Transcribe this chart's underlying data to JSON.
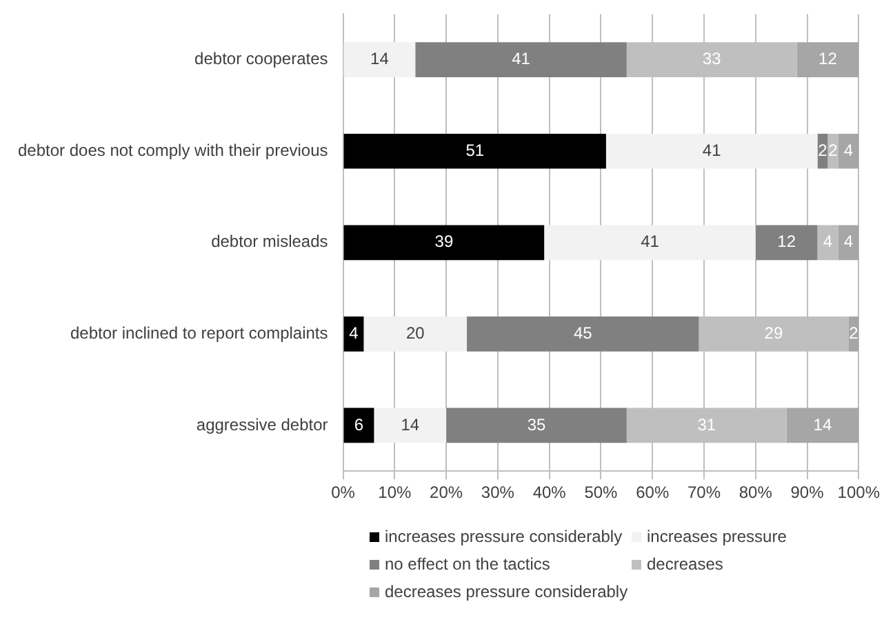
{
  "chart_data": {
    "type": "bar",
    "orientation": "horizontal",
    "stacked": true,
    "categories": [
      "debtor cooperates",
      "debtor does not comply with their previous",
      "debtor misleads",
      "debtor inclined to report complaints",
      "aggressive debtor"
    ],
    "series": [
      {
        "name": "increases pressure considerably",
        "color": "#000000",
        "values": [
          0,
          51,
          39,
          4,
          6
        ],
        "value_labels": [
          null,
          "51",
          "39",
          "4",
          "6"
        ]
      },
      {
        "name": "increases pressure",
        "color": "#f2f2f2",
        "values": [
          14,
          41,
          41,
          20,
          14
        ],
        "value_labels": [
          "14",
          "41",
          "41",
          "20",
          "14"
        ]
      },
      {
        "name": "no effect on the tactics",
        "color": "#808080",
        "values": [
          41,
          2,
          12,
          45,
          35
        ],
        "value_labels": [
          "41",
          "2",
          "12",
          "45",
          "35"
        ]
      },
      {
        "name": "decreases",
        "color": "#bfbfbf",
        "values": [
          33,
          2,
          4,
          29,
          31
        ],
        "value_labels": [
          "33",
          "2",
          "4",
          "29",
          "31"
        ]
      },
      {
        "name": "decreases pressure considerably",
        "color": "#a6a6a6",
        "values": [
          12,
          4,
          4,
          2,
          14
        ],
        "value_labels": [
          "12",
          "4",
          "4",
          "2",
          "14"
        ]
      }
    ],
    "xlim": [
      0,
      100
    ],
    "xticks": [
      {
        "value": 0,
        "label": "0%"
      },
      {
        "value": 10,
        "label": "10%"
      },
      {
        "value": 20,
        "label": "20%"
      },
      {
        "value": 30,
        "label": "30%"
      },
      {
        "value": 40,
        "label": "40%"
      },
      {
        "value": 50,
        "label": "50%"
      },
      {
        "value": 60,
        "label": "60%"
      },
      {
        "value": 70,
        "label": "70%"
      },
      {
        "value": 80,
        "label": "80%"
      },
      {
        "value": 90,
        "label": "90%"
      },
      {
        "value": 100,
        "label": "100%"
      }
    ],
    "grid": "x",
    "legend": "bottom"
  }
}
